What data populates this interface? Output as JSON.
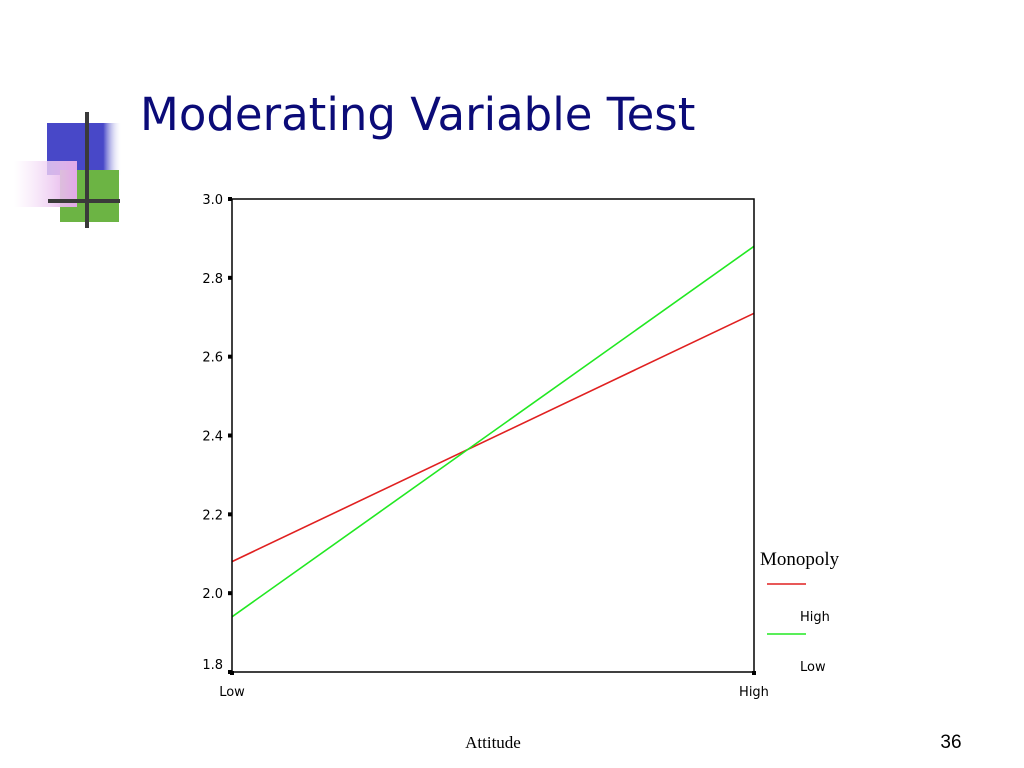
{
  "slide": {
    "title": "Moderating Variable Test",
    "number": "36"
  },
  "colors": {
    "title": "#0b0b78",
    "logo_blue": "#4848c8",
    "logo_green": "#6cb444",
    "logo_pink": "#e2a8e8",
    "logo_cross": "#3a3a3a"
  },
  "chart_data": {
    "type": "line",
    "x": [
      "Low",
      "High"
    ],
    "xlabel": "Attitude",
    "ylabel": "",
    "ylim": [
      1.8,
      3.0
    ],
    "yticks": [
      "1.8",
      "2.0",
      "2.2",
      "2.4",
      "2.6",
      "2.8",
      "3.0"
    ],
    "grid": false,
    "legend": {
      "title": "Monopoly",
      "placement": "right"
    },
    "series": [
      {
        "name": "High",
        "values": [
          2.08,
          2.71
        ],
        "color": "#e02020"
      },
      {
        "name": "Low",
        "values": [
          1.94,
          2.88
        ],
        "color": "#22e822"
      }
    ]
  }
}
